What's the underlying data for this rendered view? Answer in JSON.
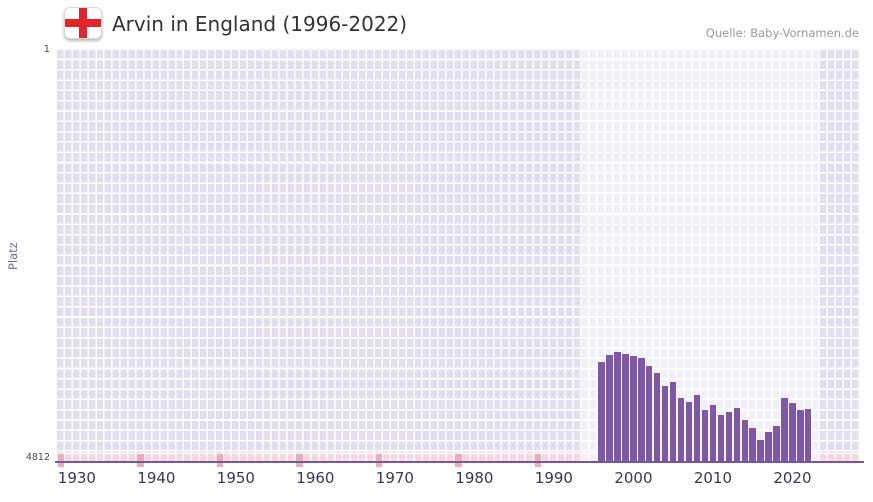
{
  "header": {
    "title": "Arvin in England (1996-2022)",
    "source": "Quelle: Baby-Vornamen.de"
  },
  "chart_data": {
    "type": "bar",
    "title": "Arvin in England (1996-2022)",
    "xlabel": "",
    "ylabel": "Platz",
    "grid": true,
    "y_axis": {
      "top_label": "1",
      "bottom_label": "4812",
      "min": 1,
      "max": 4812,
      "inverted": true
    },
    "x_ticks": [
      "1930",
      "1940",
      "1950",
      "1960",
      "1970",
      "1980",
      "1990",
      "2000",
      "2010",
      "2020"
    ],
    "grid_year_range": [
      1928,
      2028
    ],
    "highlight_band_years": [
      1994,
      2023
    ],
    "no_rank_marker_years": [
      1928,
      1938,
      1948,
      1958,
      1968,
      1978,
      1988
    ],
    "categories": [
      1996,
      1997,
      1998,
      1999,
      2000,
      2001,
      2002,
      2003,
      2004,
      2005,
      2006,
      2007,
      2008,
      2009,
      2010,
      2011,
      2012,
      2013,
      2014,
      2015,
      2016,
      2017,
      2018,
      2019,
      2020,
      2021,
      2022
    ],
    "values": [
      3645,
      3563,
      3528,
      3551,
      3574,
      3598,
      3691,
      3773,
      3925,
      3878,
      4065,
      4112,
      4030,
      4205,
      4147,
      4264,
      4229,
      4182,
      4322,
      4415,
      4555,
      4462,
      4392,
      4065,
      4123,
      4205,
      4194
    ],
    "colors": {
      "bar": "#7e57a8",
      "grid_cell": "#e3def0",
      "band_overlay": "rgba(255,255,255,0.5)",
      "axis_line": "#7557a5",
      "no_rank_strip": "#f6d8de",
      "no_rank_mark": "#ecacb8",
      "y_label": "#7b5fae",
      "x_tick_text": "#3d3554",
      "title_text": "#333333",
      "source_text": "#999999"
    }
  }
}
